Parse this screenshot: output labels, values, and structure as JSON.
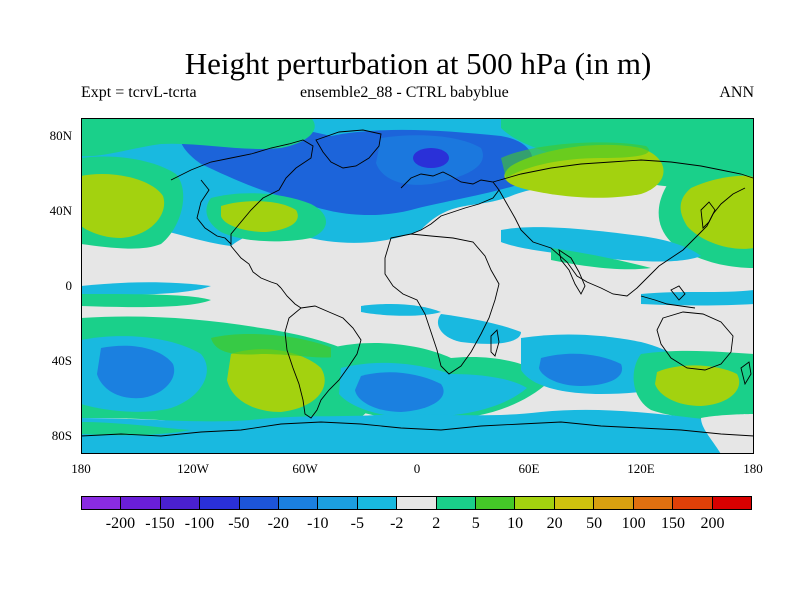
{
  "title": "Height perturbation at 500 hPa (in m)",
  "subtitle_left": "Expt = tcrvL-tcrta",
  "subtitle_center": "ensemble2_88 - CTRL babyblue",
  "subtitle_right": "ANN",
  "lat_labels": [
    "80N",
    "40N",
    "0",
    "40S",
    "80S"
  ],
  "lon_labels": [
    "180",
    "120W",
    "60W",
    "0",
    "60E",
    "120E",
    "180"
  ],
  "colorbar": {
    "labels": [
      "-200",
      "-150",
      "-100",
      "-50",
      "-20",
      "-10",
      "-5",
      "-2",
      "2",
      "5",
      "10",
      "20",
      "50",
      "100",
      "150",
      "200"
    ],
    "colors": [
      "#8a2be2",
      "#6a1ed8",
      "#4a20d0",
      "#2a30d8",
      "#1d55d8",
      "#1b80e0",
      "#1c9fe0",
      "#19b9e0",
      "#e6e6e6",
      "#1ad08a",
      "#44c828",
      "#a3d20f",
      "#cfc20e",
      "#d8a010",
      "#e07010",
      "#e04008",
      "#d80000"
    ]
  }
}
